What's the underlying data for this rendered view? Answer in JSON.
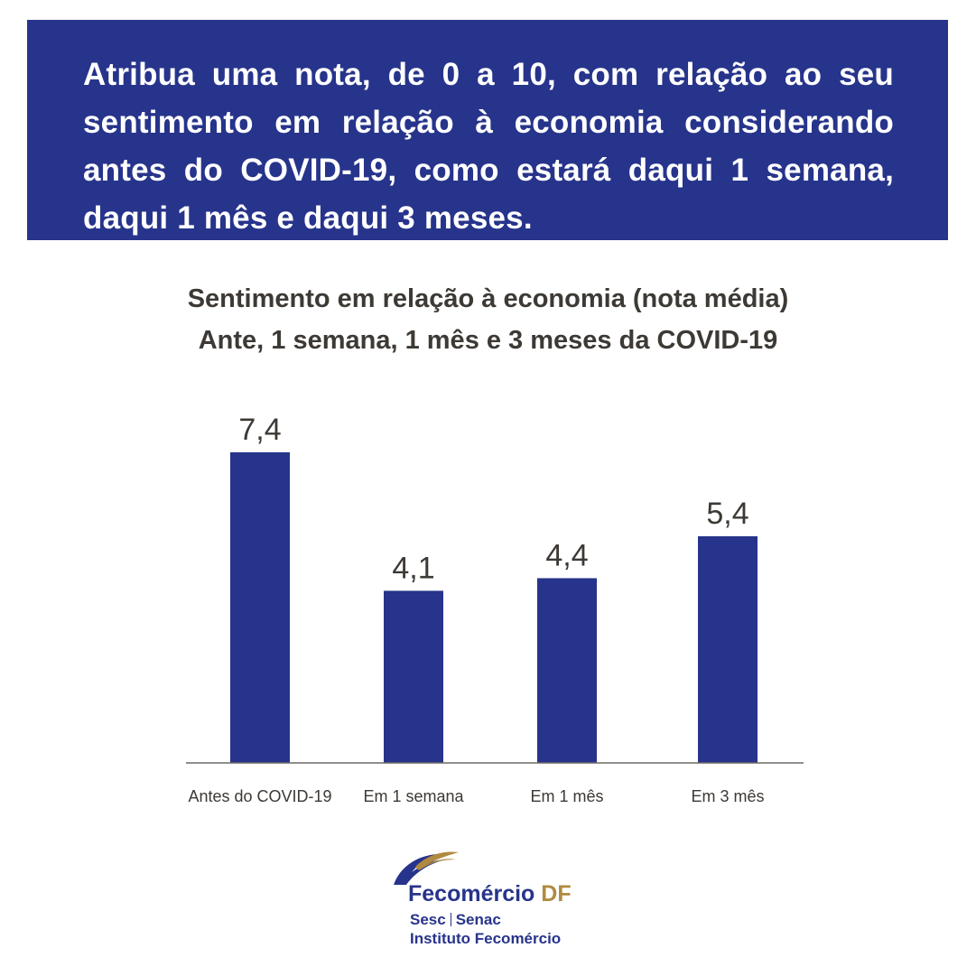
{
  "header": {
    "question": "Atribua uma nota, de 0 a 10, com relação ao seu sentimento em relação à economia considerando antes do COVID-19, como estará daqui 1 semana, daqui 1 mês e daqui 3 meses."
  },
  "chart_title": {
    "line1": "Sentimento em relação à economia (nota média)",
    "line2": "Ante, 1 semana, 1 mês e 3 meses da COVID-19"
  },
  "chart_data": {
    "type": "bar",
    "title": "Sentimento em relação à economia (nota média)",
    "subtitle": "Ante, 1 semana, 1 mês e 3 meses da COVID-19",
    "categories": [
      "Antes do COVID-19",
      "Em 1 semana",
      "Em 1 mês",
      "Em 3 mês"
    ],
    "values": [
      7.4,
      4.1,
      4.4,
      5.4
    ],
    "value_labels": [
      "7,4",
      "4,1",
      "4,4",
      "5,4"
    ],
    "xlabel": "",
    "ylabel": "",
    "ylim": [
      0,
      10
    ],
    "grid": false,
    "legend": "none",
    "bar_color": "#27348b"
  },
  "logo": {
    "brand_main": "Fecomércio",
    "brand_region": "DF",
    "sub_a": "Sesc",
    "sub_b": "Senac",
    "sub_line2": "Instituto Fecomércio",
    "colors": {
      "blue": "#27348b",
      "gold": "#b08a3e"
    }
  }
}
